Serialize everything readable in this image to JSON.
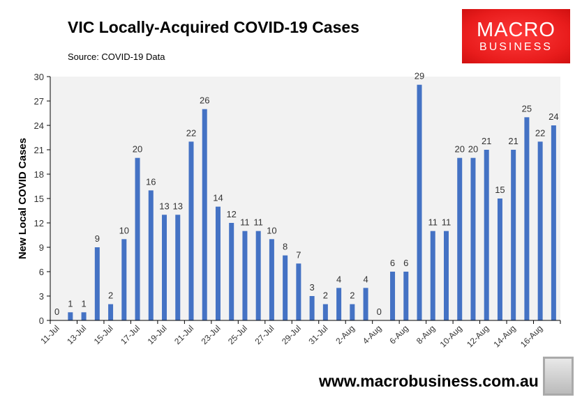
{
  "header": {
    "title": "VIC Locally-Acquired COVID-19 Cases",
    "source": "Source: COVID-19 Data"
  },
  "logo": {
    "line1": "MACRO",
    "line2": "BUSINESS",
    "color": "#e8211f"
  },
  "footer": {
    "url": "www.macrobusiness.com.au"
  },
  "chart_data": {
    "type": "bar",
    "title": "VIC Locally-Acquired COVID-19 Cases",
    "xlabel": "",
    "ylabel": "New Local COVID Cases",
    "ylim": [
      0,
      30
    ],
    "yticks": [
      0,
      3,
      6,
      9,
      12,
      15,
      18,
      21,
      24,
      27,
      30
    ],
    "grid": false,
    "bar_color": "#4472c4",
    "plot_background": "#f2f2f2",
    "categories": [
      "11-Jul",
      "12-Jul",
      "13-Jul",
      "14-Jul",
      "15-Jul",
      "16-Jul",
      "17-Jul",
      "18-Jul",
      "19-Jul",
      "20-Jul",
      "21-Jul",
      "22-Jul",
      "23-Jul",
      "24-Jul",
      "25-Jul",
      "26-Jul",
      "27-Jul",
      "28-Jul",
      "29-Jul",
      "30-Jul",
      "31-Jul",
      "1-Aug",
      "2-Aug",
      "3-Aug",
      "4-Aug",
      "5-Aug",
      "6-Aug",
      "7-Aug",
      "8-Aug",
      "9-Aug",
      "10-Aug",
      "11-Aug",
      "12-Aug",
      "13-Aug",
      "14-Aug",
      "15-Aug",
      "16-Aug",
      "17-Aug"
    ],
    "tick_labels": [
      "11-Jul",
      "13-Jul",
      "15-Jul",
      "17-Jul",
      "19-Jul",
      "21-Jul",
      "23-Jul",
      "25-Jul",
      "27-Jul",
      "29-Jul",
      "31-Jul",
      "2-Aug",
      "4-Aug",
      "6-Aug",
      "8-Aug",
      "10-Aug",
      "12-Aug",
      "14-Aug",
      "16-Aug"
    ],
    "values": [
      0,
      1,
      1,
      9,
      2,
      10,
      20,
      16,
      13,
      13,
      22,
      26,
      14,
      12,
      11,
      11,
      10,
      8,
      7,
      3,
      2,
      4,
      2,
      4,
      0,
      6,
      6,
      29,
      11,
      11,
      20,
      20,
      21,
      15,
      21,
      25,
      22,
      24
    ]
  }
}
